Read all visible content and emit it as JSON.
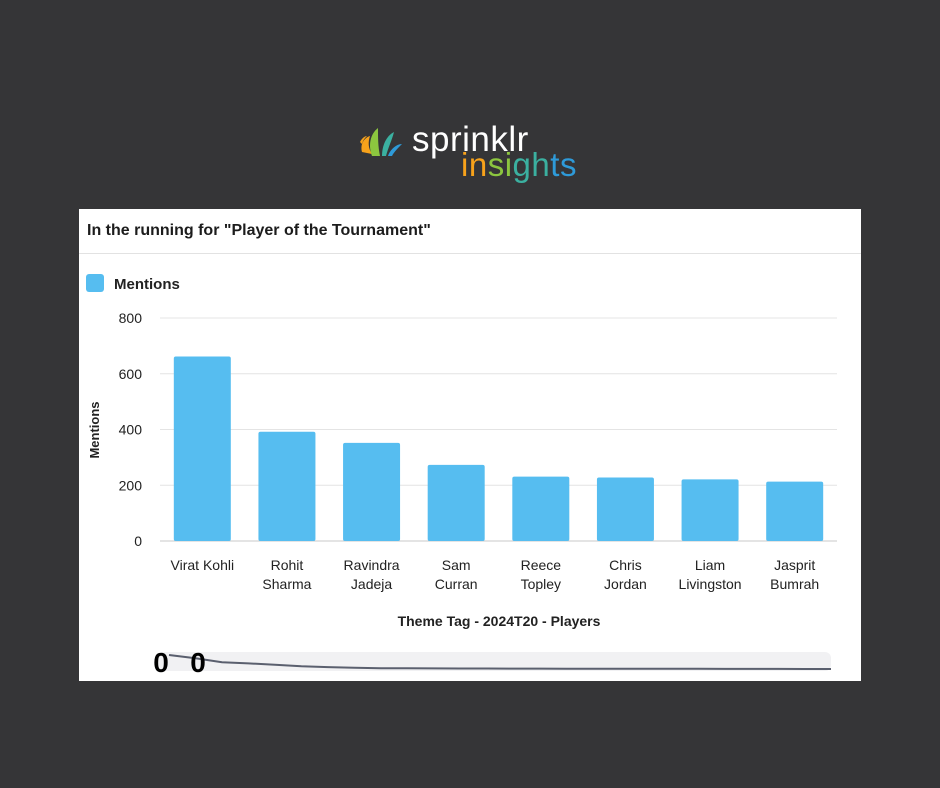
{
  "brand": {
    "name": "sprinklr",
    "subtitle": "insights"
  },
  "card": {
    "title": "In the running for \"Player of the Tournament\""
  },
  "colors": {
    "bar": "#56bdf0",
    "background": "#353537"
  },
  "chart_data": {
    "type": "bar",
    "title": "In the running for \"Player of the Tournament\"",
    "legend": {
      "position": "top-left",
      "entries": [
        "Mentions"
      ]
    },
    "xlabel": "Theme Tag - 2024T20 - Players",
    "ylabel": "Mentions",
    "ylim": [
      0,
      800
    ],
    "yticks": [
      0,
      200,
      400,
      600,
      800
    ],
    "grid": true,
    "categories": [
      [
        "Virat Kohli"
      ],
      [
        "Rohit",
        "Sharma"
      ],
      [
        "Ravindra",
        "Jadeja"
      ],
      [
        "Sam",
        "Curran"
      ],
      [
        "Reece",
        "Topley"
      ],
      [
        "Chris",
        "Jordan"
      ],
      [
        "Liam",
        "Livingston"
      ],
      [
        "Jasprit",
        "Bumrah"
      ]
    ],
    "series": [
      {
        "name": "Mentions",
        "values": [
          662,
          392,
          352,
          273,
          231,
          228,
          221,
          213
        ]
      }
    ]
  },
  "navigator": {
    "handle_left": "0",
    "handle_right": "0",
    "trend": [
      662,
      560,
      430,
      392,
      352,
      300,
      273,
      250,
      240,
      236,
      231,
      230,
      228,
      226,
      225,
      223,
      222,
      221,
      220,
      219,
      218,
      217,
      216,
      215,
      214,
      213
    ]
  }
}
